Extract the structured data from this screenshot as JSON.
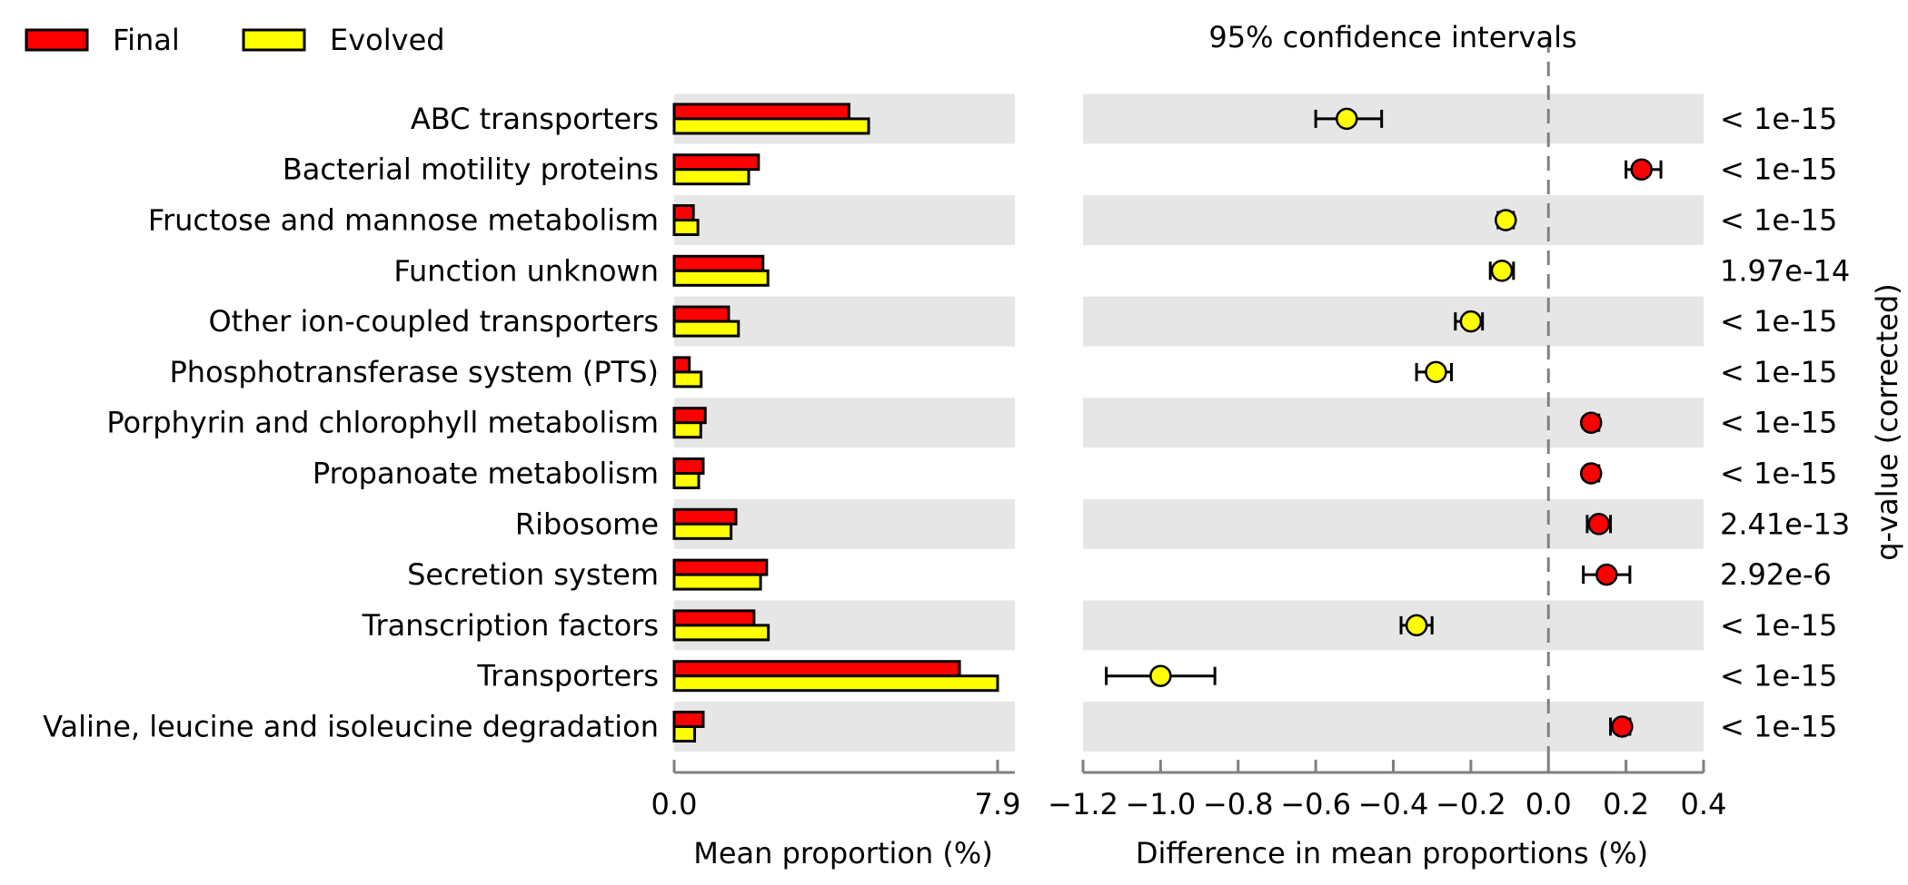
{
  "chart_data": [
    {
      "type": "bar",
      "orientation": "horizontal",
      "xlabel": "Mean proportion (%)",
      "xlim": [
        0.0,
        7.9
      ],
      "xticks": [
        "0.0",
        "7.9"
      ],
      "categories": [
        "ABC transporters",
        "Bacterial motility proteins",
        "Fructose and mannose metabolism",
        "Function unknown",
        "Other ion-coupled transporters",
        "Phosphotransferase system (PTS)",
        "Porphyrin and chlorophyll metabolism",
        "Propanoate metabolism",
        "Ribosome",
        "Secretion system",
        "Transcription factors",
        "Transporters",
        "Valine, leucine and isoleucine degradation"
      ],
      "series": [
        {
          "name": "Final",
          "color": "#ff0000",
          "values": [
            4.27,
            2.06,
            0.47,
            2.17,
            1.33,
            0.37,
            0.76,
            0.71,
            1.51,
            2.26,
            1.95,
            6.97,
            0.71
          ]
        },
        {
          "name": "Evolved",
          "color": "#ffff00",
          "values": [
            4.75,
            1.82,
            0.58,
            2.29,
            1.57,
            0.66,
            0.65,
            0.6,
            1.39,
            2.11,
            2.3,
            7.9,
            0.5
          ]
        }
      ],
      "legend": "top-left",
      "shaded_rows": "alternating"
    },
    {
      "type": "scatter",
      "title": "95% confidence intervals",
      "xlabel": "Difference in mean proportions (%)",
      "xlim": [
        -1.2,
        0.4
      ],
      "xticks": [
        "−1.2",
        "−1.0",
        "−0.8",
        "−0.6",
        "−0.4",
        "−0.2",
        "0.0",
        "0.2",
        "0.4"
      ],
      "reference_line": 0.0,
      "points": [
        {
          "diff": -0.52,
          "ci": [
            -0.6,
            -0.43
          ],
          "color": "#ffff00"
        },
        {
          "diff": 0.24,
          "ci": [
            0.2,
            0.29
          ],
          "color": "#ff0000"
        },
        {
          "diff": -0.11,
          "ci": [
            -0.13,
            -0.09
          ],
          "color": "#ffff00"
        },
        {
          "diff": -0.12,
          "ci": [
            -0.15,
            -0.09
          ],
          "color": "#ffff00"
        },
        {
          "diff": -0.2,
          "ci": [
            -0.24,
            -0.17
          ],
          "color": "#ffff00"
        },
        {
          "diff": -0.29,
          "ci": [
            -0.34,
            -0.25
          ],
          "color": "#ffff00"
        },
        {
          "diff": 0.11,
          "ci": [
            0.1,
            0.13
          ],
          "color": "#ff0000"
        },
        {
          "diff": 0.11,
          "ci": [
            0.1,
            0.13
          ],
          "color": "#ff0000"
        },
        {
          "diff": 0.13,
          "ci": [
            0.1,
            0.16
          ],
          "color": "#ff0000"
        },
        {
          "diff": 0.15,
          "ci": [
            0.09,
            0.21
          ],
          "color": "#ff0000"
        },
        {
          "diff": -0.34,
          "ci": [
            -0.38,
            -0.3
          ],
          "color": "#ffff00"
        },
        {
          "diff": -1.0,
          "ci": [
            -1.14,
            -0.86
          ],
          "color": "#ffff00"
        },
        {
          "diff": 0.19,
          "ci": [
            0.16,
            0.21
          ],
          "color": "#ff0000"
        }
      ],
      "q_values": [
        "< 1e-15",
        "< 1e-15",
        "< 1e-15",
        "1.97e-14",
        "< 1e-15",
        "< 1e-15",
        "< 1e-15",
        "< 1e-15",
        "2.41e-13",
        "2.92e-6",
        "< 1e-15",
        "< 1e-15",
        "< 1e-15"
      ],
      "q_label": "q-value (corrected)"
    }
  ],
  "colors": {
    "shade": "#e6e6e6",
    "axis": "#808080"
  }
}
